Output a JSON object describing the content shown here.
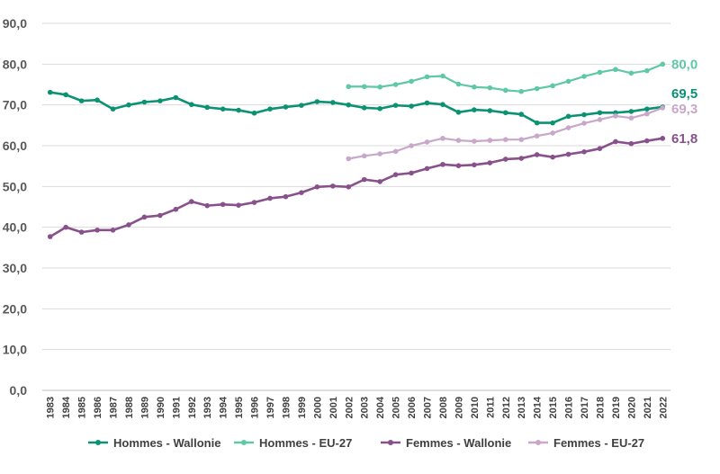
{
  "chart_data": {
    "type": "line",
    "title": "",
    "xlabel": "",
    "ylabel": "",
    "ylim": [
      0,
      90
    ],
    "yticks": [
      "0,0",
      "10,0",
      "20,0",
      "30,0",
      "40,0",
      "50,0",
      "60,0",
      "70,0",
      "80,0",
      "90,0"
    ],
    "grid": "horizontal",
    "legend": "bottom",
    "x": [
      "1983",
      "1984",
      "1985",
      "1986",
      "1987",
      "1988",
      "1989",
      "1990",
      "1991",
      "1992",
      "1993",
      "1994",
      "1995",
      "1996",
      "1997",
      "1998",
      "1999",
      "2000",
      "2001",
      "2002",
      "2003",
      "2004",
      "2005",
      "2006",
      "2007",
      "2008",
      "2009",
      "2010",
      "2011",
      "2012",
      "2013",
      "2014",
      "2015",
      "2016",
      "2017",
      "2018",
      "2019",
      "2020",
      "2021",
      "2022"
    ],
    "series": [
      {
        "name": "Hommes - Wallonie",
        "color": "#0a9272",
        "light": false,
        "end_label": "69,5",
        "values": [
          73.1,
          72.5,
          71.0,
          71.2,
          69.0,
          70.0,
          70.7,
          71.0,
          71.8,
          70.1,
          69.4,
          69.0,
          68.7,
          68.0,
          69.0,
          69.5,
          69.9,
          70.8,
          70.6,
          70.0,
          69.3,
          69.1,
          69.9,
          69.7,
          70.5,
          70.1,
          68.2,
          68.8,
          68.6,
          68.1,
          67.7,
          65.6,
          65.6,
          67.2,
          67.6,
          68.1,
          68.1,
          68.4,
          69.0,
          69.5
        ]
      },
      {
        "name": "Hommes - EU-27",
        "color": "#5fc8a4",
        "light": true,
        "end_label": "80,0",
        "values": [
          null,
          null,
          null,
          null,
          null,
          null,
          null,
          null,
          null,
          null,
          null,
          null,
          null,
          null,
          null,
          null,
          null,
          null,
          null,
          74.5,
          74.5,
          74.4,
          75.0,
          75.8,
          76.9,
          77.1,
          75.1,
          74.4,
          74.2,
          73.6,
          73.3,
          74.0,
          74.7,
          75.8,
          77.0,
          78.0,
          78.7,
          77.8,
          78.4,
          80.0
        ]
      },
      {
        "name": "Femmes - Wallonie",
        "color": "#88518b",
        "light": false,
        "end_label": "61,8",
        "values": [
          37.7,
          40.0,
          38.8,
          39.3,
          39.3,
          40.6,
          42.5,
          42.9,
          44.4,
          46.3,
          45.3,
          45.6,
          45.4,
          46.1,
          47.1,
          47.5,
          48.5,
          49.9,
          50.1,
          49.9,
          51.7,
          51.2,
          52.9,
          53.3,
          54.4,
          55.4,
          55.1,
          55.3,
          55.8,
          56.7,
          56.9,
          57.8,
          57.2,
          57.9,
          58.5,
          59.3,
          61.0,
          60.5,
          61.2,
          61.8
        ]
      },
      {
        "name": "Femmes - EU-27",
        "color": "#c8a7ca",
        "light": true,
        "end_label": "69,3",
        "values": [
          null,
          null,
          null,
          null,
          null,
          null,
          null,
          null,
          null,
          null,
          null,
          null,
          null,
          null,
          null,
          null,
          null,
          null,
          null,
          56.8,
          57.5,
          58.0,
          58.6,
          60.0,
          60.9,
          61.8,
          61.3,
          61.1,
          61.3,
          61.5,
          61.5,
          62.4,
          63.1,
          64.4,
          65.5,
          66.4,
          67.3,
          66.8,
          67.8,
          69.3
        ]
      }
    ]
  }
}
